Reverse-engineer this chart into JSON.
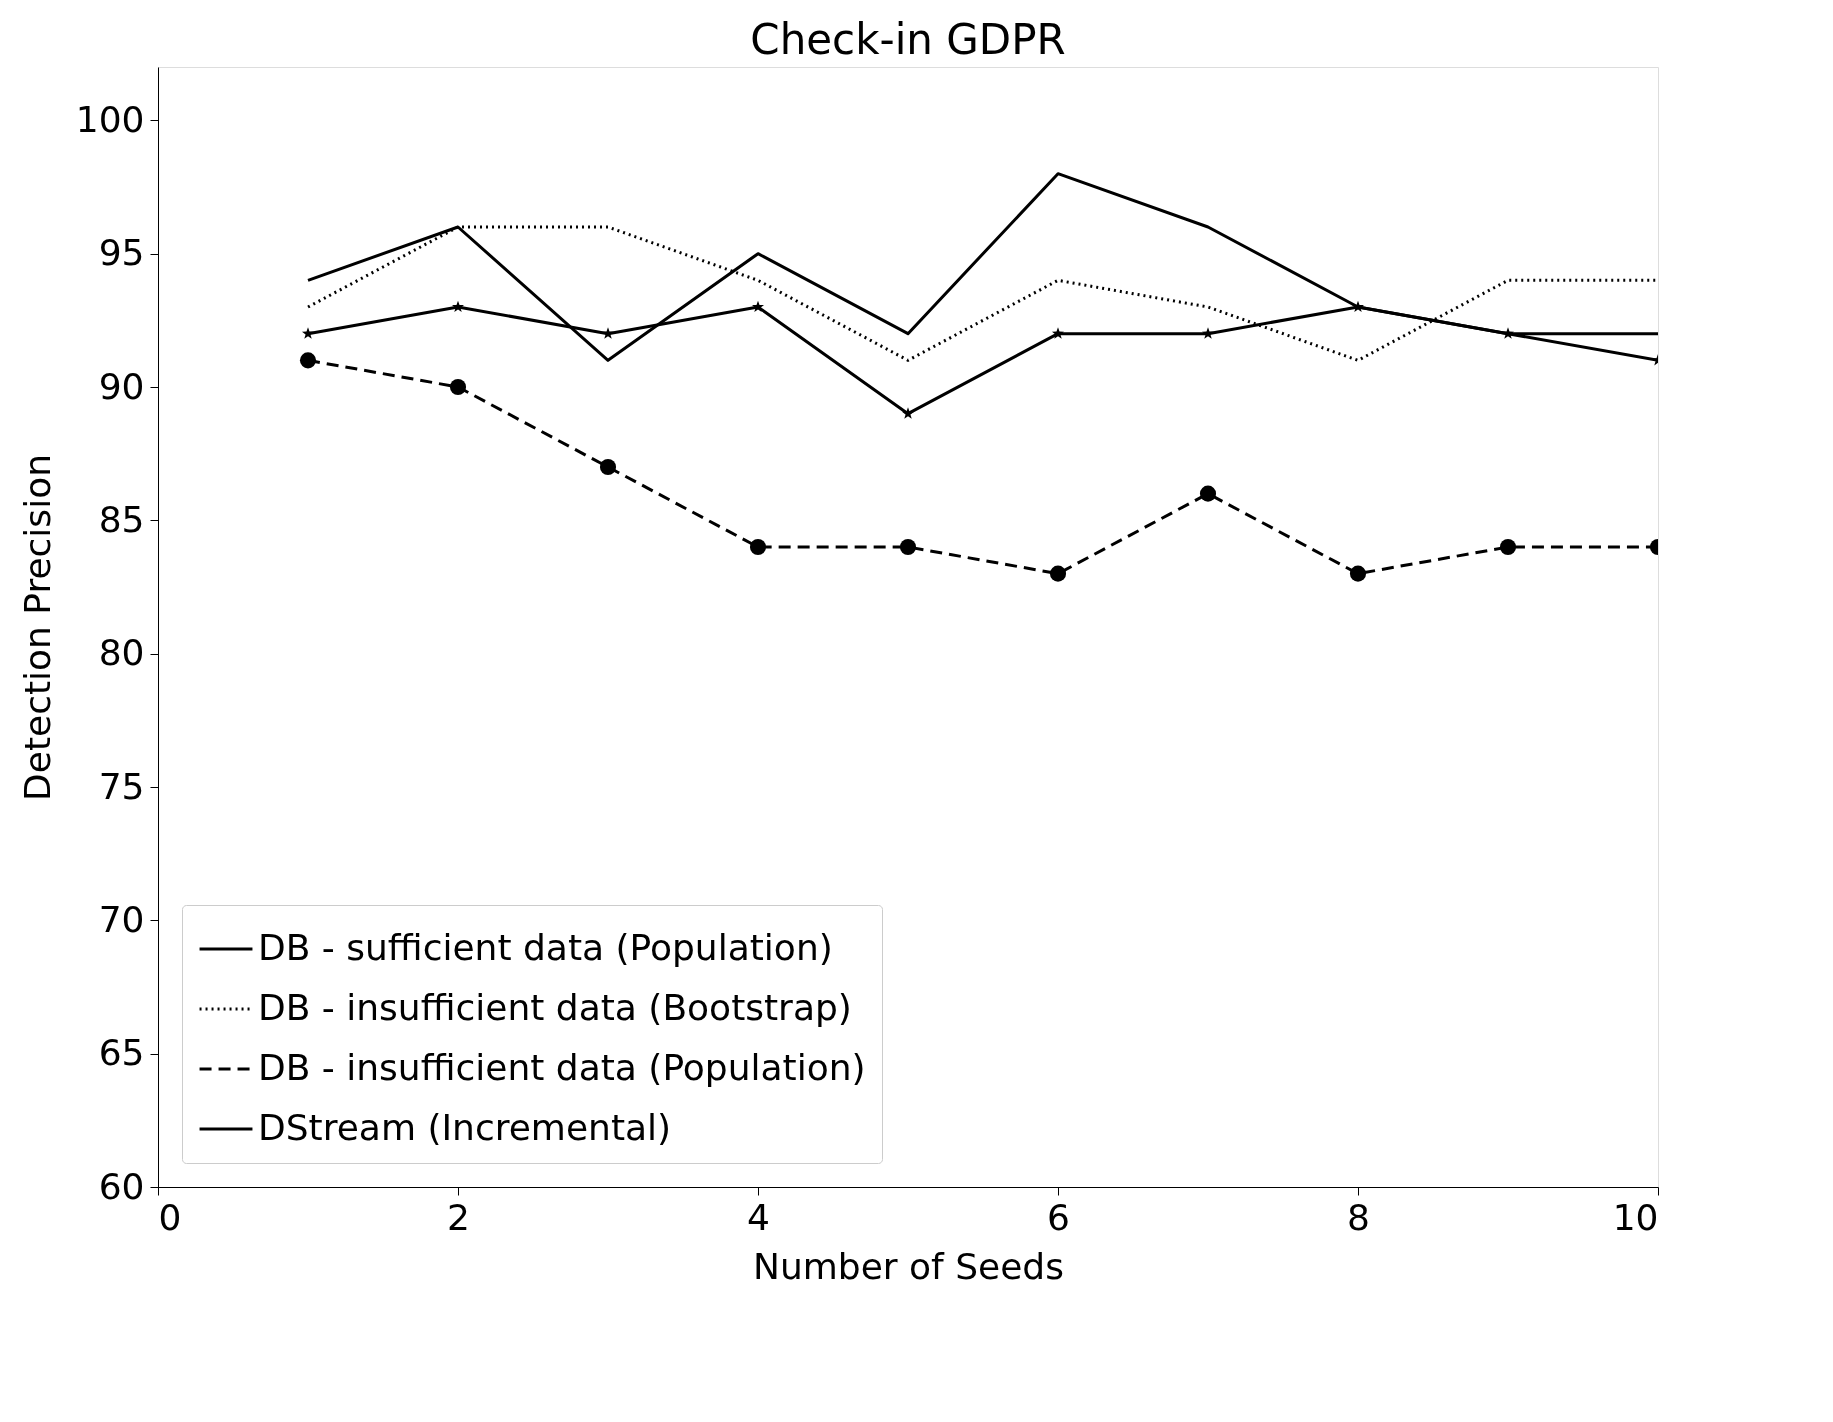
{
  "chart_data": {
    "type": "line",
    "title": "Check-in GDPR",
    "xlabel": "Number of Seeds",
    "ylabel": "Detection Precision",
    "x": [
      1,
      2,
      3,
      4,
      5,
      6,
      7,
      8,
      9,
      10
    ],
    "series": [
      {
        "name": "DB - sufficient data (Population)",
        "color": "#000000",
        "line_style": "solid",
        "marker": "none",
        "values": [
          94,
          96,
          91,
          95,
          92,
          98,
          96,
          93,
          92,
          92
        ]
      },
      {
        "name": "DB - insufficient data (Bootstrap)",
        "color": "#000000",
        "line_style": "dotted",
        "marker": "none",
        "values": [
          93,
          96,
          96,
          94,
          91,
          94,
          93,
          91,
          94,
          94
        ]
      },
      {
        "name": "DB - insufficient data (Population)",
        "color": "#000000",
        "line_style": "dashed",
        "marker": "circle",
        "values": [
          91,
          90,
          87,
          84,
          84,
          83,
          86,
          83,
          84,
          84
        ]
      },
      {
        "name": "DStream (Incremental)",
        "color": "#000000",
        "line_style": "solid",
        "marker": "star",
        "values": [
          92,
          93,
          92,
          93,
          89,
          92,
          92,
          93,
          92,
          91
        ]
      }
    ],
    "xlim": [
      0,
      10
    ],
    "xticks": [
      0,
      2,
      4,
      6,
      8,
      10
    ],
    "ylim": [
      60,
      102
    ],
    "yticks": [
      60,
      65,
      70,
      75,
      80,
      85,
      90,
      95,
      100
    ],
    "grid": false,
    "legend": "bottom left"
  }
}
